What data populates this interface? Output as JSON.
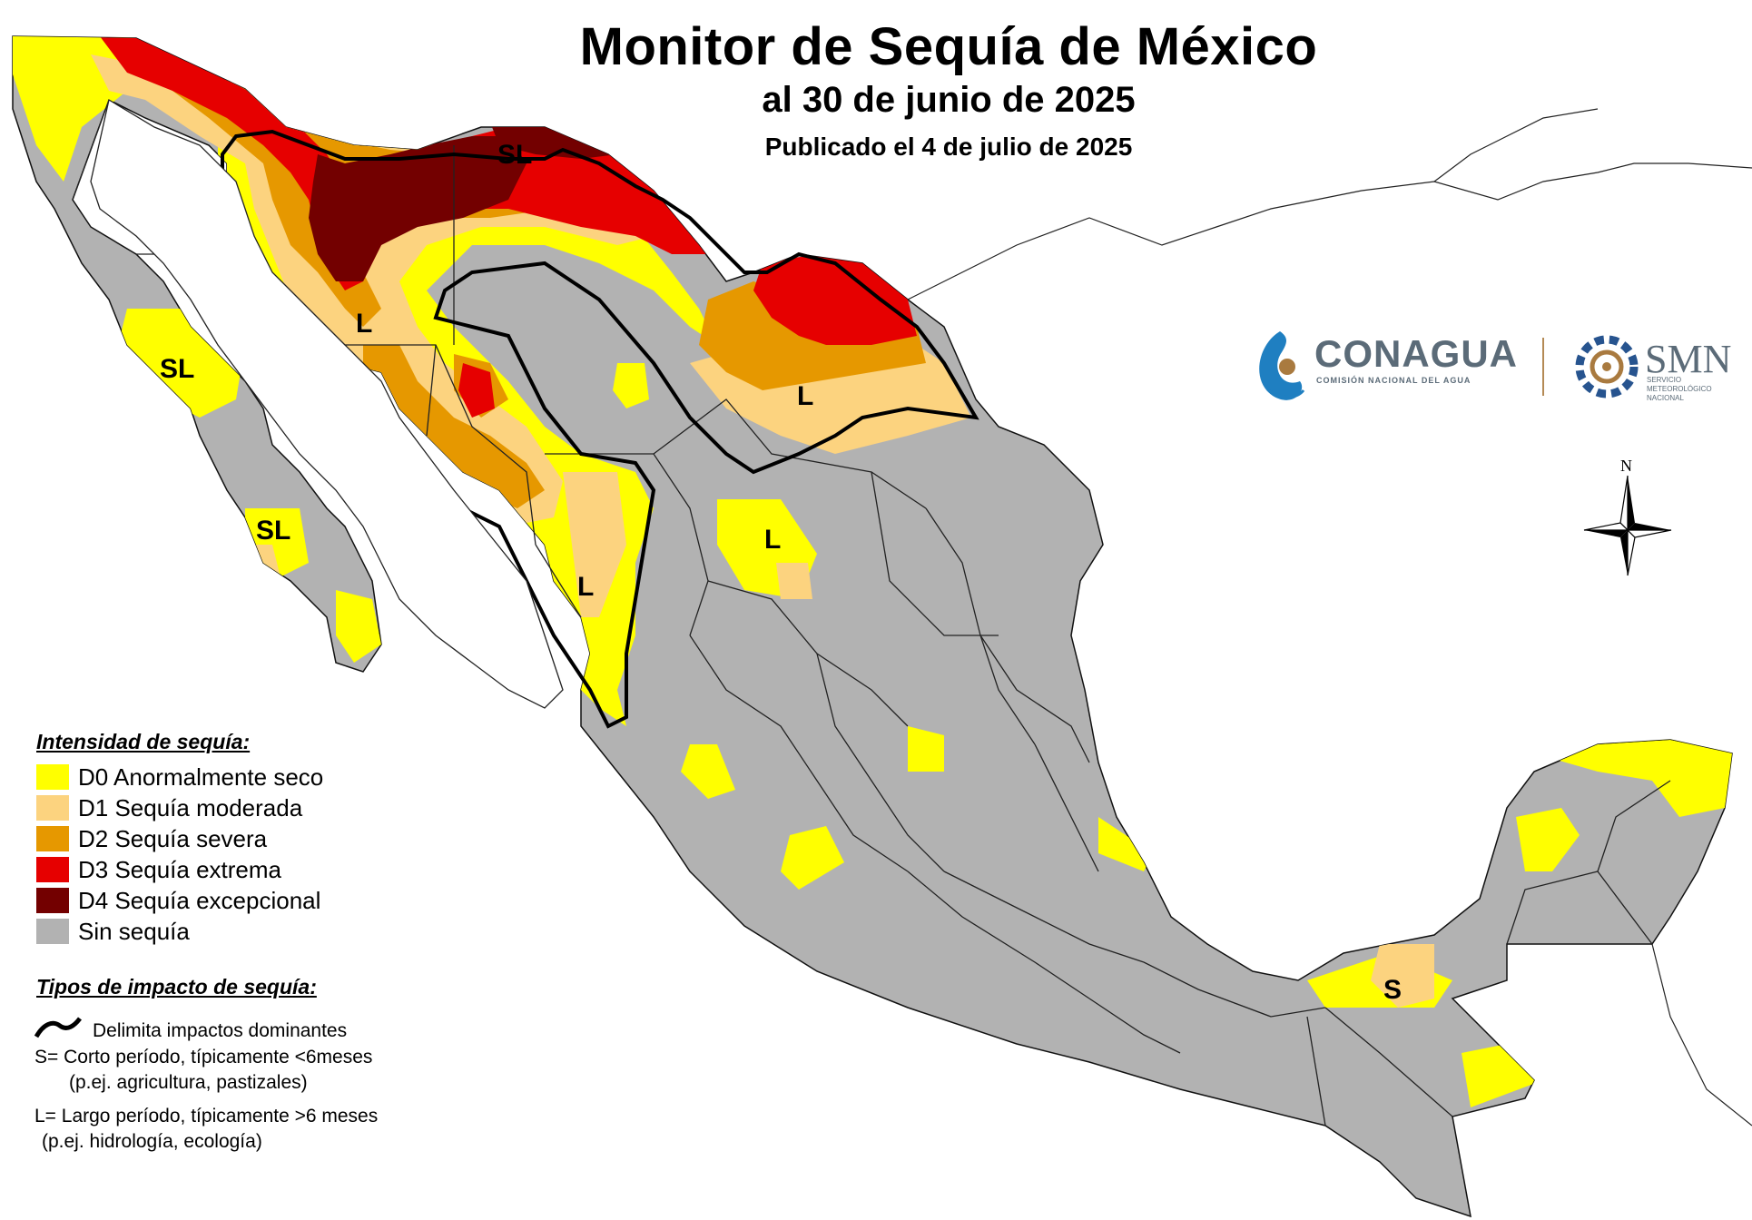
{
  "title": "Monitor de Sequía de México",
  "subtitle": "al 30 de junio de 2025",
  "published": "Publicado el 4 de julio de 2025",
  "legend": {
    "intensity_heading": "Intensidad de sequía:",
    "items": [
      {
        "label": "D0 Anormalmente seco",
        "color": "#ffff00"
      },
      {
        "label": "D1 Sequía moderada",
        "color": "#fcd37f"
      },
      {
        "label": "D2 Sequía severa",
        "color": "#e69800"
      },
      {
        "label": "D3 Sequía extrema",
        "color": "#e60000"
      },
      {
        "label": "D4 Sequía excepcional",
        "color": "#730000"
      },
      {
        "label": "Sin sequía",
        "color": "#b2b2b2"
      }
    ],
    "impact_heading": "Tipos de impacto de sequía:",
    "impact_line": "Delimita impactos dominantes",
    "short_1": "S= Corto período, típicamente <6meses",
    "short_2": "(p.ej. agricultura, pastizales)",
    "long_1": "L= Largo período, típicamente >6 meses",
    "long_2": "(p.ej. hidrología, ecología)"
  },
  "map_labels": {
    "sl_north": "SL",
    "l_sonora": "L",
    "sl_bcs_north": "SL",
    "sl_bcs_south": "SL",
    "l_nuevo_leon": "L",
    "l_coahuila": "L",
    "l_sinaloa": "L",
    "s_tabasco": "S"
  },
  "logos": {
    "conagua": "CONAGUA",
    "conagua_sub": "COMISIÓN NACIONAL DEL AGUA",
    "smn": "SMN",
    "smn_sub": "SERVICIO METEOROLÓGICO NACIONAL"
  },
  "compass": {
    "north": "N"
  },
  "icons": [
    "conagua-logo-icon",
    "smn-logo-icon",
    "compass-rose-icon",
    "impact-line-icon"
  ]
}
